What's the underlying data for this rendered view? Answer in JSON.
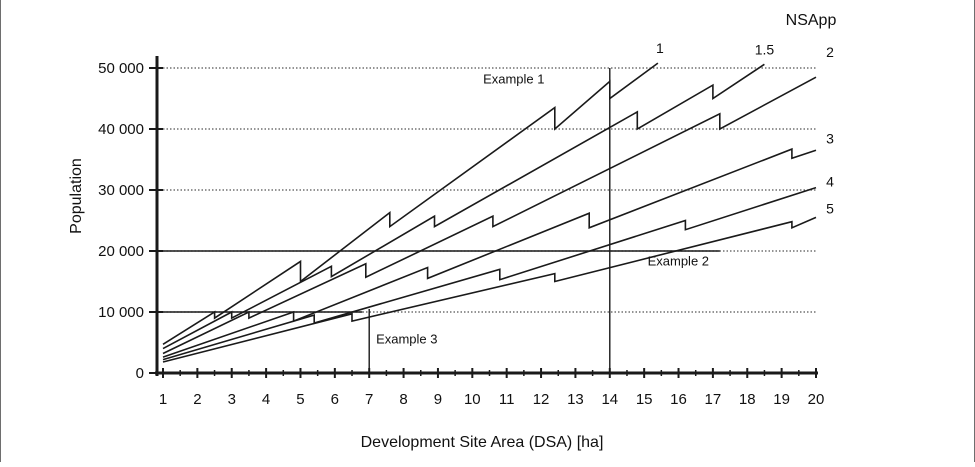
{
  "chart_data": {
    "type": "line",
    "title": "",
    "xlabel": "Development Site Area (DSA) [ha]",
    "ylabel": "Population",
    "xlim": [
      1,
      20
    ],
    "ylim": [
      0,
      50000
    ],
    "x_ticks": [
      1,
      2,
      3,
      4,
      5,
      6,
      7,
      8,
      9,
      10,
      11,
      12,
      13,
      14,
      15,
      16,
      17,
      18,
      19,
      20
    ],
    "y_ticks": [
      0,
      10000,
      20000,
      30000,
      40000,
      50000
    ],
    "y_tick_labels": [
      "0",
      "10 000",
      "20 000",
      "30 000",
      "40 000",
      "50 000"
    ],
    "grid": "horizontal dotted at 10 000 steps",
    "legend_title": "NSApp",
    "colors": {
      "lines": "#1a1a1a",
      "grid": "#555555"
    },
    "series": [
      {
        "name": "1",
        "points": [
          [
            1,
            4700
          ],
          [
            2.5,
            10000
          ],
          [
            2.5,
            9000
          ],
          [
            5,
            18300
          ],
          [
            5,
            15000
          ],
          [
            7.6,
            26300
          ],
          [
            7.6,
            24000
          ],
          [
            12.4,
            43500
          ],
          [
            12.4,
            40000
          ],
          [
            14,
            47800
          ],
          [
            14,
            45000
          ],
          [
            15.4,
            50800
          ]
        ]
      },
      {
        "name": "1.5",
        "points": [
          [
            1,
            4000
          ],
          [
            3,
            10000
          ],
          [
            3,
            9000
          ],
          [
            5.9,
            17500
          ],
          [
            5.9,
            15800
          ],
          [
            8.9,
            25700
          ],
          [
            8.9,
            24000
          ],
          [
            14.8,
            42800
          ],
          [
            14.8,
            40000
          ],
          [
            17,
            47200
          ],
          [
            17,
            45000
          ],
          [
            18.5,
            50600
          ]
        ]
      },
      {
        "name": "2",
        "points": [
          [
            1,
            3200
          ],
          [
            3.5,
            10000
          ],
          [
            3.5,
            9000
          ],
          [
            6.9,
            17900
          ],
          [
            6.9,
            15700
          ],
          [
            10.6,
            25700
          ],
          [
            10.6,
            24000
          ],
          [
            17.2,
            42500
          ],
          [
            17.2,
            40000
          ],
          [
            20,
            48500
          ]
        ]
      },
      {
        "name": "3",
        "points": [
          [
            1,
            2600
          ],
          [
            4.8,
            10000
          ],
          [
            4.8,
            8500
          ],
          [
            8.7,
            17300
          ],
          [
            8.7,
            15500
          ],
          [
            13.4,
            26200
          ],
          [
            13.4,
            23800
          ],
          [
            19.3,
            36700
          ],
          [
            19.3,
            35200
          ],
          [
            20,
            36500
          ]
        ]
      },
      {
        "name": "4",
        "points": [
          [
            1,
            2200
          ],
          [
            5.4,
            9500
          ],
          [
            5.4,
            8200
          ],
          [
            10.8,
            17000
          ],
          [
            10.8,
            15300
          ],
          [
            16.2,
            25000
          ],
          [
            16.2,
            23500
          ],
          [
            20,
            30400
          ]
        ]
      },
      {
        "name": "5",
        "points": [
          [
            1,
            1800
          ],
          [
            6.5,
            9700
          ],
          [
            6.5,
            8500
          ],
          [
            12.4,
            16300
          ],
          [
            12.4,
            15000
          ],
          [
            19.3,
            24800
          ],
          [
            19.3,
            23800
          ],
          [
            20,
            25500
          ]
        ]
      }
    ],
    "reference_lines": [
      {
        "orientation": "vertical",
        "x": 14,
        "y_to": 50000
      },
      {
        "orientation": "vertical",
        "x": 7,
        "y_to": 10500
      },
      {
        "orientation": "horizontal",
        "y": 20000,
        "x_from": 1,
        "x_to": 17.2
      },
      {
        "orientation": "horizontal",
        "y": 10000,
        "x_from": 1,
        "x_to": 6.8
      }
    ],
    "annotations": [
      {
        "text": "Example 1",
        "x": 12.1,
        "y": 47500
      },
      {
        "text": "Example 2",
        "x": 15.1,
        "y": 17600
      },
      {
        "text": "Example 3",
        "x": 7.2,
        "y": 4800
      }
    ]
  }
}
